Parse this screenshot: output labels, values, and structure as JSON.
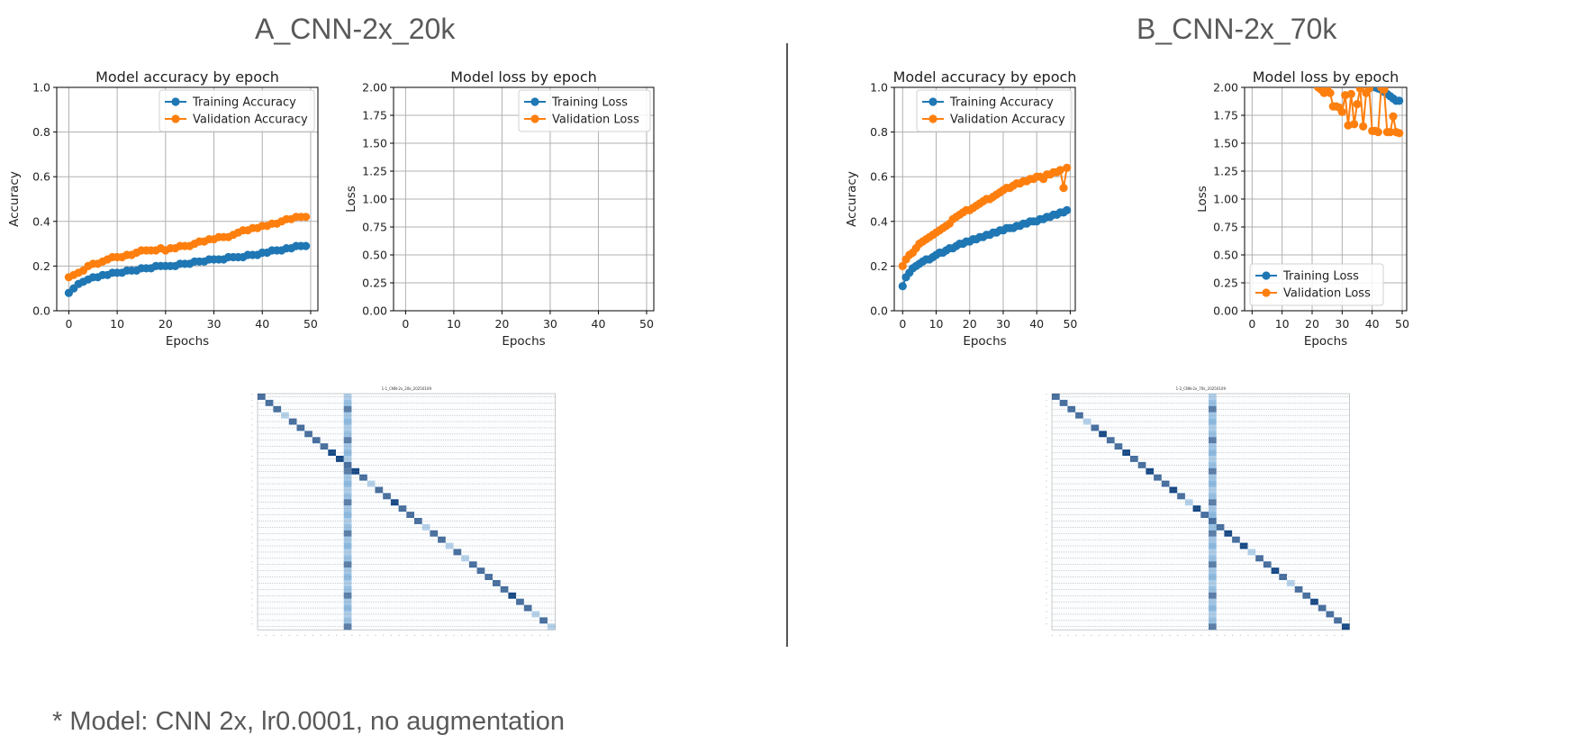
{
  "panels": [
    {
      "title": "A_CNN-2x_20k",
      "confusion_title": "1-1_CNN-2x_20k_20250109"
    },
    {
      "title": "B_CNN-2x_70k",
      "confusion_title": "1-2_CNN-2x_70k_20250109"
    }
  ],
  "footnote": "* Model: CNN 2x, lr0.0001, no augmentation",
  "colors": {
    "training": "#1f77b4",
    "validation": "#ff7f0e",
    "grid": "#b0b0b0"
  },
  "chart_data": [
    {
      "type": "line",
      "panel": "A_CNN-2x_20k",
      "title": "Model accuracy by epoch",
      "xlabel": "Epochs",
      "ylabel": "Accuracy",
      "xlim": [
        -2.5,
        51.5
      ],
      "ylim": [
        0,
        1
      ],
      "xticks": [
        0,
        10,
        20,
        30,
        40,
        50
      ],
      "yticks": [
        0.0,
        0.2,
        0.4,
        0.6,
        0.8,
        1.0
      ],
      "grid": true,
      "legend": "top-right",
      "series": [
        {
          "name": "Training Accuracy",
          "values": [
            0.08,
            0.1,
            0.12,
            0.13,
            0.14,
            0.15,
            0.15,
            0.16,
            0.16,
            0.17,
            0.17,
            0.17,
            0.18,
            0.18,
            0.18,
            0.19,
            0.19,
            0.19,
            0.2,
            0.2,
            0.2,
            0.2,
            0.2,
            0.21,
            0.21,
            0.21,
            0.22,
            0.22,
            0.22,
            0.23,
            0.23,
            0.23,
            0.23,
            0.24,
            0.24,
            0.24,
            0.24,
            0.25,
            0.25,
            0.25,
            0.26,
            0.26,
            0.27,
            0.27,
            0.27,
            0.28,
            0.28,
            0.29,
            0.29,
            0.29
          ]
        },
        {
          "name": "Validation Accuracy",
          "values": [
            0.15,
            0.16,
            0.17,
            0.18,
            0.2,
            0.21,
            0.21,
            0.22,
            0.23,
            0.24,
            0.24,
            0.24,
            0.25,
            0.25,
            0.26,
            0.27,
            0.27,
            0.27,
            0.27,
            0.28,
            0.27,
            0.28,
            0.28,
            0.29,
            0.29,
            0.29,
            0.3,
            0.31,
            0.31,
            0.32,
            0.32,
            0.33,
            0.33,
            0.33,
            0.34,
            0.35,
            0.36,
            0.36,
            0.37,
            0.37,
            0.38,
            0.38,
            0.39,
            0.39,
            0.4,
            0.41,
            0.41,
            0.42,
            0.42,
            0.42
          ]
        }
      ]
    },
    {
      "type": "line",
      "panel": "A_CNN-2x_20k",
      "title": "Model loss by epoch",
      "xlabel": "Epochs",
      "ylabel": "Loss",
      "xlim": [
        -2.5,
        51.5
      ],
      "ylim": [
        0,
        2
      ],
      "xticks": [
        0,
        10,
        20,
        30,
        40,
        50
      ],
      "yticks": [
        0.0,
        0.25,
        0.5,
        0.75,
        1.0,
        1.25,
        1.5,
        1.75,
        2.0
      ],
      "grid": true,
      "legend": "top-right",
      "series": [
        {
          "name": "Training Loss",
          "values": []
        },
        {
          "name": "Validation Loss",
          "values": []
        }
      ]
    },
    {
      "type": "line",
      "panel": "B_CNN-2x_70k",
      "title": "Model accuracy by epoch",
      "xlabel": "Epochs",
      "ylabel": "Accuracy",
      "xlim": [
        -2.5,
        51.5
      ],
      "ylim": [
        0,
        1
      ],
      "xticks": [
        0,
        10,
        20,
        30,
        40,
        50
      ],
      "yticks": [
        0.0,
        0.2,
        0.4,
        0.6,
        0.8,
        1.0
      ],
      "grid": true,
      "legend": "top-right",
      "series": [
        {
          "name": "Training Accuracy",
          "values": [
            0.11,
            0.15,
            0.17,
            0.19,
            0.2,
            0.21,
            0.22,
            0.23,
            0.23,
            0.24,
            0.25,
            0.26,
            0.26,
            0.27,
            0.28,
            0.28,
            0.29,
            0.3,
            0.3,
            0.31,
            0.31,
            0.32,
            0.32,
            0.33,
            0.33,
            0.34,
            0.34,
            0.35,
            0.35,
            0.36,
            0.36,
            0.37,
            0.37,
            0.37,
            0.38,
            0.38,
            0.39,
            0.39,
            0.4,
            0.4,
            0.4,
            0.41,
            0.41,
            0.42,
            0.42,
            0.43,
            0.43,
            0.44,
            0.44,
            0.45
          ]
        },
        {
          "name": "Validation Accuracy",
          "values": [
            0.2,
            0.23,
            0.25,
            0.26,
            0.28,
            0.3,
            0.31,
            0.32,
            0.33,
            0.34,
            0.35,
            0.36,
            0.37,
            0.38,
            0.39,
            0.41,
            0.42,
            0.43,
            0.44,
            0.45,
            0.45,
            0.46,
            0.47,
            0.48,
            0.49,
            0.5,
            0.5,
            0.51,
            0.52,
            0.53,
            0.54,
            0.55,
            0.55,
            0.56,
            0.57,
            0.57,
            0.58,
            0.58,
            0.59,
            0.59,
            0.6,
            0.6,
            0.59,
            0.61,
            0.61,
            0.62,
            0.62,
            0.63,
            0.55,
            0.64
          ]
        }
      ]
    },
    {
      "type": "line",
      "panel": "B_CNN-2x_70k",
      "title": "Model loss by epoch",
      "xlabel": "Epochs",
      "ylabel": "Loss",
      "xlim": [
        -2.5,
        51.5
      ],
      "ylim": [
        0,
        2
      ],
      "xticks": [
        0,
        10,
        20,
        30,
        40,
        50
      ],
      "yticks": [
        0.0,
        0.25,
        0.5,
        0.75,
        1.0,
        1.25,
        1.5,
        1.75,
        2.0
      ],
      "grid": true,
      "legend": "bottom-left",
      "series": [
        {
          "name": "Training Loss",
          "values": [
            null,
            null,
            null,
            null,
            null,
            null,
            null,
            null,
            null,
            null,
            null,
            null,
            null,
            null,
            null,
            null,
            null,
            null,
            null,
            null,
            null,
            null,
            null,
            null,
            null,
            null,
            null,
            null,
            null,
            null,
            null,
            null,
            null,
            null,
            null,
            null,
            null,
            null,
            null,
            null,
            2.01,
            2.0,
            1.99,
            1.98,
            1.96,
            1.94,
            1.92,
            1.9,
            1.88,
            1.88
          ]
        },
        {
          "name": "Validation Loss",
          "values": [
            null,
            null,
            null,
            null,
            null,
            null,
            null,
            null,
            null,
            null,
            null,
            null,
            null,
            null,
            null,
            null,
            null,
            null,
            null,
            null,
            null,
            null,
            2.0,
            1.98,
            1.95,
            2.0,
            1.95,
            1.83,
            1.83,
            1.82,
            1.78,
            1.93,
            1.66,
            1.94,
            1.67,
            1.85,
            1.99,
            1.65,
            1.95,
            1.99,
            1.61,
            1.61,
            1.6,
            2.0,
            1.98,
            1.6,
            1.6,
            1.74,
            1.6,
            1.59
          ]
        }
      ]
    }
  ]
}
